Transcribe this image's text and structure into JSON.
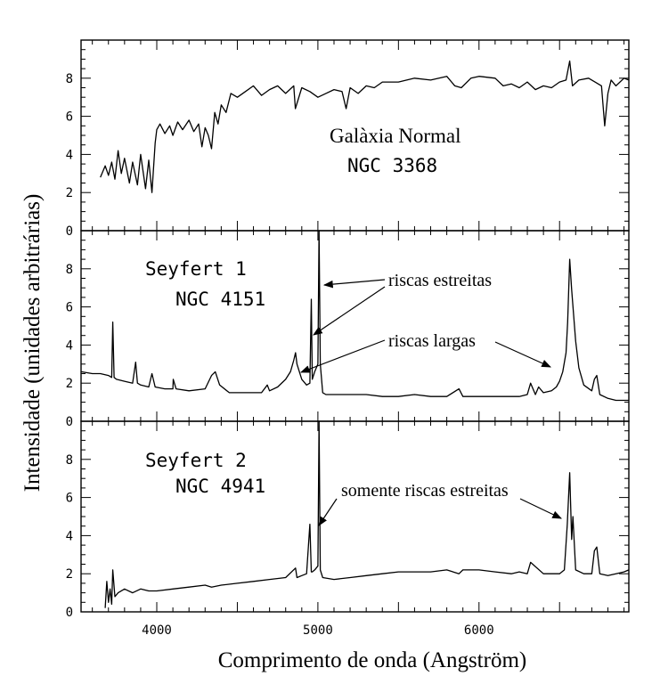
{
  "chart_data": {
    "type": "line",
    "xlabel": "Comprimento de onda (Angström)",
    "ylabel": "Intensidade (unidades arbitrárias)",
    "xlim": [
      3530,
      6930
    ],
    "x_ticks": [
      "4000",
      "5000",
      "6000"
    ],
    "panels": [
      {
        "id": "normal",
        "name_line1": "Galàxia Normal",
        "name_line2": "NGC 3368",
        "ylim": [
          0,
          10
        ],
        "y_ticks": [
          "0",
          "2",
          "4",
          "6",
          "8"
        ],
        "series": [
          {
            "x": [
              3650,
              3680,
              3700,
              3720,
              3740,
              3760,
              3780,
              3800,
              3830,
              3850,
              3880,
              3900,
              3930,
              3950,
              3970,
              3990,
              4000,
              4020,
              4050,
              4080,
              4100,
              4130,
              4160,
              4200,
              4230,
              4260,
              4280,
              4300,
              4320,
              4340,
              4360,
              4380,
              4400,
              4430,
              4460,
              4500,
              4550,
              4600,
              4650,
              4700,
              4750,
              4800,
              4850,
              4860,
              4900,
              4950,
              5000,
              5050,
              5100,
              5150,
              5175,
              5200,
              5250,
              5300,
              5350,
              5400,
              5500,
              5600,
              5700,
              5800,
              5850,
              5890,
              5950,
              6000,
              6100,
              6150,
              6200,
              6250,
              6300,
              6350,
              6400,
              6450,
              6500,
              6540,
              6563,
              6580,
              6620,
              6680,
              6720,
              6760,
              6780,
              6800,
              6820,
              6850,
              6900,
              6930
            ],
            "y": [
              2.8,
              3.4,
              2.9,
              3.6,
              2.7,
              4.2,
              3.0,
              3.8,
              2.5,
              3.6,
              2.4,
              4.0,
              2.2,
              3.7,
              2.0,
              4.6,
              5.3,
              5.6,
              5.1,
              5.5,
              5.0,
              5.7,
              5.3,
              5.8,
              5.2,
              5.6,
              4.4,
              5.4,
              5.0,
              4.3,
              6.2,
              5.6,
              6.6,
              6.2,
              7.2,
              7.0,
              7.3,
              7.6,
              7.1,
              7.4,
              7.6,
              7.2,
              7.6,
              6.4,
              7.5,
              7.3,
              7.0,
              7.2,
              7.4,
              7.3,
              6.4,
              7.5,
              7.2,
              7.6,
              7.5,
              7.8,
              7.8,
              8.0,
              7.9,
              8.1,
              7.6,
              7.5,
              8.0,
              8.1,
              8.0,
              7.6,
              7.7,
              7.5,
              7.8,
              7.4,
              7.6,
              7.5,
              7.8,
              7.9,
              8.9,
              7.6,
              7.9,
              8.0,
              7.8,
              7.6,
              5.5,
              7.2,
              7.9,
              7.6,
              8.0,
              7.9
            ]
          }
        ]
      },
      {
        "id": "seyfert1",
        "name_line1": "Seyfert 1",
        "name_line2": "NGC 4151",
        "ylim": [
          0,
          10
        ],
        "y_ticks": [
          "0",
          "2",
          "4",
          "6",
          "8"
        ],
        "series": [
          {
            "x": [
              3530,
              3600,
              3650,
              3700,
              3720,
              3727,
              3735,
              3750,
              3800,
              3850,
              3869,
              3880,
              3900,
              3950,
              3970,
              3990,
              4050,
              4100,
              4102,
              4120,
              4200,
              4300,
              4340,
              4363,
              4390,
              4450,
              4550,
              4650,
              4686,
              4700,
              4750,
              4800,
              4830,
              4850,
              4861,
              4870,
              4900,
              4930,
              4950,
              4959,
              4965,
              4980,
              5000,
              5007,
              5015,
              5030,
              5050,
              5100,
              5200,
              5300,
              5400,
              5500,
              5600,
              5700,
              5800,
              5876,
              5900,
              6000,
              6100,
              6200,
              6250,
              6300,
              6320,
              6350,
              6370,
              6400,
              6450,
              6480,
              6500,
              6520,
              6540,
              6550,
              6563,
              6575,
              6600,
              6620,
              6650,
              6700,
              6716,
              6731,
              6750,
              6800,
              6850,
              6900,
              6930
            ],
            "y": [
              2.6,
              2.5,
              2.5,
              2.4,
              2.3,
              5.2,
              2.3,
              2.2,
              2.1,
              2.0,
              3.1,
              2.0,
              1.9,
              1.8,
              2.5,
              1.8,
              1.7,
              1.7,
              2.2,
              1.7,
              1.6,
              1.7,
              2.4,
              2.6,
              1.9,
              1.5,
              1.5,
              1.5,
              1.9,
              1.6,
              1.8,
              2.2,
              2.6,
              3.2,
              3.6,
              3.0,
              2.2,
              1.9,
              2.0,
              6.4,
              2.2,
              2.6,
              3.0,
              10.0,
              3.0,
              1.5,
              1.4,
              1.4,
              1.4,
              1.4,
              1.3,
              1.3,
              1.4,
              1.3,
              1.3,
              1.7,
              1.3,
              1.3,
              1.3,
              1.3,
              1.3,
              1.4,
              2.0,
              1.4,
              1.8,
              1.5,
              1.6,
              1.8,
              2.1,
              2.6,
              3.6,
              5.2,
              8.5,
              6.9,
              4.2,
              2.8,
              1.9,
              1.6,
              2.2,
              2.4,
              1.4,
              1.2,
              1.1,
              1.1,
              1.1
            ]
          }
        ]
      },
      {
        "id": "seyfert2",
        "name_line1": "Seyfert 2",
        "name_line2": "NGC 4941",
        "ylim": [
          0,
          10
        ],
        "y_ticks": [
          "0",
          "2",
          "4",
          "6",
          "8"
        ],
        "series": [
          {
            "x": [
              3680,
              3690,
              3700,
              3710,
              3720,
              3727,
              3740,
              3760,
              3800,
              3850,
              3900,
              3950,
              4000,
              4100,
              4200,
              4300,
              4340,
              4400,
              4500,
              4600,
              4700,
              4800,
              4861,
              4870,
              4900,
              4930,
              4950,
              4959,
              4965,
              4980,
              5000,
              5007,
              5015,
              5030,
              5100,
              5200,
              5300,
              5400,
              5500,
              5600,
              5700,
              5800,
              5876,
              5900,
              6000,
              6100,
              6200,
              6250,
              6300,
              6320,
              6400,
              6500,
              6530,
              6548,
              6563,
              6575,
              6583,
              6600,
              6650,
              6700,
              6716,
              6731,
              6750,
              6800,
              6850,
              6900,
              6930
            ],
            "y": [
              0.2,
              1.6,
              0.5,
              1.2,
              0.4,
              2.2,
              0.8,
              1.0,
              1.2,
              1.0,
              1.2,
              1.1,
              1.1,
              1.2,
              1.3,
              1.4,
              1.3,
              1.4,
              1.5,
              1.6,
              1.7,
              1.8,
              2.3,
              1.8,
              1.9,
              2.0,
              4.6,
              2.1,
              2.1,
              2.2,
              2.4,
              10.0,
              2.2,
              1.8,
              1.7,
              1.8,
              1.9,
              2.0,
              2.1,
              2.1,
              2.1,
              2.2,
              2.0,
              2.2,
              2.2,
              2.1,
              2.0,
              2.1,
              2.0,
              2.6,
              2.0,
              2.0,
              2.2,
              4.6,
              7.3,
              3.8,
              5.0,
              2.2,
              2.0,
              2.0,
              3.2,
              3.4,
              2.0,
              1.9,
              2.0,
              2.1,
              2.2
            ]
          }
        ]
      }
    ],
    "annotations": {
      "estreitas": "riscas estreitas",
      "largas": "riscas largas",
      "somente": "somente riscas estreitas"
    }
  }
}
